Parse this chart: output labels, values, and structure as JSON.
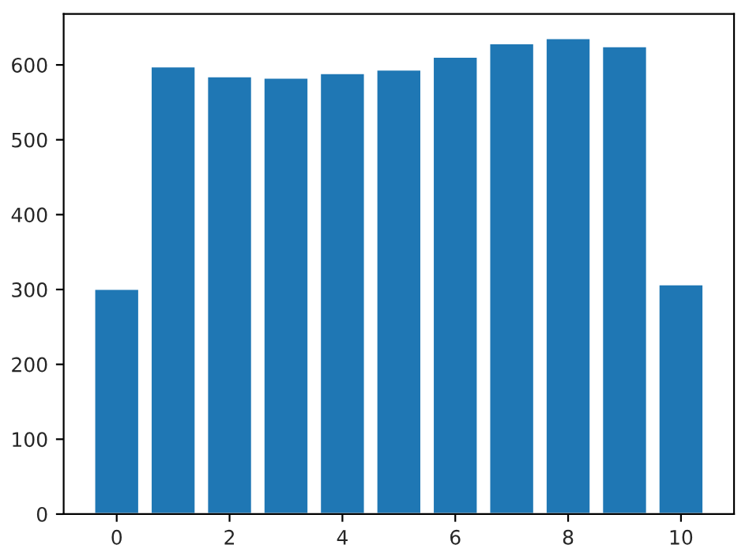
{
  "chart_data": {
    "type": "bar",
    "x": [
      0,
      1,
      2,
      3,
      4,
      5,
      6,
      7,
      8,
      9,
      10
    ],
    "values": [
      301,
      598,
      585,
      583,
      589,
      594,
      611,
      629,
      636,
      625,
      307
    ],
    "color": "#1f77b4",
    "xlim": [
      -0.94,
      10.94
    ],
    "xticks": [
      0,
      2,
      4,
      6,
      8,
      10
    ],
    "ylim": [
      0,
      668
    ],
    "yticks": [
      0,
      100,
      200,
      300,
      400,
      500,
      600
    ],
    "grid": false,
    "legend": false
  }
}
